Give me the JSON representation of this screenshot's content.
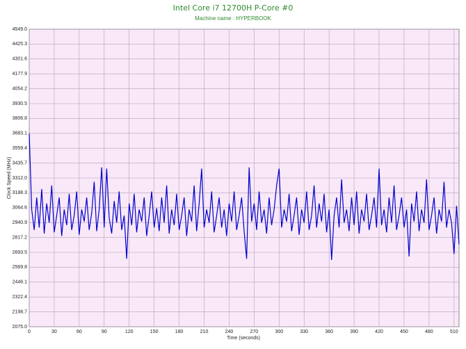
{
  "chart_data": {
    "type": "line",
    "title": "Intel Core i7 12700H P-Core #0",
    "subtitle": "Machine name : HYPERBOOK",
    "x_label": "Time (seconds)",
    "y_label": "Clock Speed (MHz)",
    "background": "#f8e8f8",
    "grid": true,
    "xlim": [
      0,
      516
    ],
    "xticks": [
      0,
      30,
      60,
      90,
      120,
      150,
      180,
      210,
      240,
      270,
      300,
      330,
      360,
      390,
      420,
      450,
      480,
      510
    ],
    "ylim": [
      2075,
      4549
    ],
    "yticks": [
      {
        "value": 2075,
        "label": "2075.0"
      },
      2198.7,
      2322.4,
      2446.1,
      2569.8,
      2693.5,
      2817.2,
      2940.9,
      3064.6,
      3188.3,
      {
        "value": 3312,
        "label": "3312.0"
      },
      3435.7,
      3559.4,
      3683.1,
      3806.8,
      3930.5,
      4054.2,
      4177.9,
      4301.6,
      4425.3,
      {
        "value": 4549,
        "label": "4549.0"
      }
    ],
    "x": [
      0,
      3,
      6,
      9,
      12,
      15,
      18,
      21,
      24,
      27,
      30,
      33,
      36,
      39,
      42,
      45,
      48,
      51,
      54,
      57,
      60,
      63,
      66,
      69,
      72,
      75,
      78,
      81,
      84,
      87,
      90,
      93,
      96,
      99,
      102,
      105,
      108,
      111,
      114,
      117,
      120,
      123,
      126,
      129,
      132,
      135,
      138,
      141,
      144,
      147,
      150,
      153,
      156,
      159,
      162,
      165,
      168,
      171,
      174,
      177,
      180,
      183,
      186,
      189,
      192,
      195,
      198,
      201,
      204,
      207,
      210,
      213,
      216,
      219,
      222,
      225,
      228,
      231,
      234,
      237,
      240,
      243,
      246,
      249,
      252,
      255,
      258,
      261,
      264,
      267,
      270,
      273,
      276,
      279,
      282,
      285,
      288,
      291,
      294,
      297,
      300,
      303,
      306,
      309,
      312,
      315,
      318,
      321,
      324,
      327,
      330,
      333,
      336,
      339,
      342,
      345,
      348,
      351,
      354,
      357,
      360,
      363,
      366,
      369,
      372,
      375,
      378,
      381,
      384,
      387,
      390,
      393,
      396,
      399,
      402,
      405,
      408,
      411,
      414,
      417,
      420,
      423,
      426,
      429,
      432,
      435,
      438,
      441,
      444,
      447,
      450,
      453,
      456,
      459,
      462,
      465,
      468,
      471,
      474,
      477,
      480,
      483,
      486,
      489,
      492,
      495,
      498,
      501,
      504,
      507,
      510,
      513,
      516
    ],
    "series": [
      {
        "name": "Clock Speed",
        "color": "#0000cc",
        "values": [
          3683,
          3050,
          2880,
          3150,
          2900,
          3220,
          2850,
          3100,
          2940,
          3250,
          2860,
          3000,
          3150,
          2830,
          3050,
          2920,
          3180,
          2880,
          3000,
          3200,
          2840,
          3050,
          2950,
          3150,
          2880,
          3020,
          3280,
          2870,
          3050,
          3400,
          2900,
          3390,
          2980,
          2850,
          3120,
          2940,
          3200,
          2880,
          3000,
          2640,
          3100,
          2920,
          3180,
          2860,
          3050,
          2950,
          3150,
          2830,
          3000,
          3200,
          2900,
          3060,
          2870,
          3150,
          2940,
          3250,
          2850,
          3050,
          2920,
          3180,
          2880,
          3000,
          3150,
          2830,
          3050,
          2950,
          3250,
          2870,
          3100,
          3390,
          2900,
          3050,
          2940,
          3200,
          2860,
          3000,
          3150,
          2900,
          3050,
          2830,
          3100,
          2950,
          3200,
          2880,
          3000,
          3150,
          2870,
          2640,
          3400,
          2950,
          3100,
          2880,
          3200,
          2940,
          3050,
          2850,
          3150,
          2920,
          3050,
          3250,
          3390,
          2900,
          3050,
          2950,
          3180,
          2870,
          3000,
          3150,
          2840,
          3050,
          2940,
          3200,
          2880,
          3000,
          3250,
          2900,
          3100,
          2950,
          3180,
          2860,
          3050,
          2630,
          3000,
          3150,
          2900,
          3300,
          2940,
          3050,
          2870,
          3150,
          2920,
          3200,
          2850,
          3050,
          2950,
          3180,
          2880,
          3000,
          3150,
          2900,
          3390,
          2920,
          3050,
          2860,
          3150,
          2940,
          3250,
          2880,
          3000,
          3150,
          2900,
          3050,
          2660,
          3100,
          2950,
          3200,
          2870,
          3050,
          2940,
          3300,
          2880,
          3000,
          3150,
          2850,
          3050,
          2950,
          3280,
          2900,
          3050,
          2940,
          2680,
          3080,
          2760
        ]
      }
    ]
  }
}
